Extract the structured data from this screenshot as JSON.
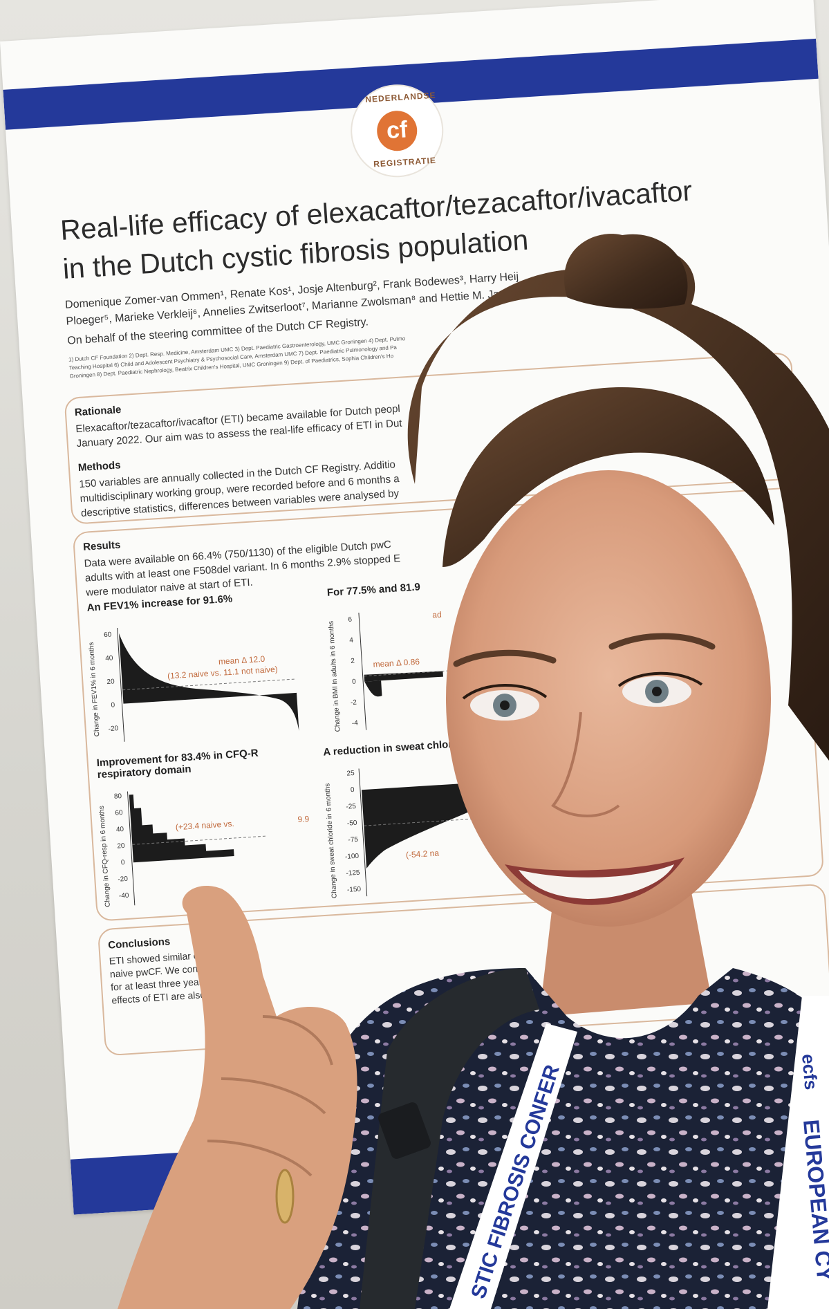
{
  "poster": {
    "logo": {
      "text": "cf",
      "arc_top": "NEDERLANDSE",
      "arc_bottom": "REGISTRATIE"
    },
    "title_line1": "Real-life efficacy of elexacaftor/tezacaftor/ivacaftor",
    "title_line2": "in the Dutch cystic fibrosis population",
    "authors_line1": "Domenique Zomer-van Ommen¹, Renate Kos¹, Josje Altenburg², Frank Bodewes³, Harry Heij",
    "authors_line2": "Ploeger⁵, Marieke Verkleij⁶, Annelies Zwitserloot⁷, Marianne Zwolsman⁸ and Hettie M. Ja",
    "behalf": "On behalf of the steering committee of the Dutch CF Registry.",
    "affil_line1": "1) Dutch CF Foundation 2) Dept. Resp. Medicine, Amsterdam UMC 3) Dept. Paediatric Gastroenterology, UMC Groningen 4) Dept. Pulmo",
    "affil_line2": "Teaching Hospital 6) Child and Adolescent Psychiatry & Psychosocial Care, Amsterdam UMC 7) Dept. Paediatric Pulmonology and Pa",
    "affil_line3": "Groningen 8) Dept. Paediatric Nephrology, Beatrix Children's Hospital, UMC Groningen 9) Dept. of Paediatrics, Sophia Children's Ho",
    "rationale": {
      "heading": "Rationale",
      "line1": "Elexacaftor/tezacaftor/ivacaftor (ETI) became available for Dutch peopl",
      "line2": "January 2022. Our aim was to assess the real-life efficacy of ETI in Dut"
    },
    "methods": {
      "heading": "Methods",
      "line1": "150 variables are annually collected in the Dutch CF Registry. Additio",
      "line2": "multidisciplinary working group, were recorded before and 6 months a",
      "line3": "descriptive statistics, differences between variables were analysed by"
    },
    "results": {
      "heading": "Results",
      "line1": "Data were available on 66.4% (750/1130) of the eligible Dutch pwC",
      "line2": "adults with at least one F508del variant. In 6 months 2.9% stopped E",
      "line3": "were modulator naive at start of ETI."
    },
    "charts": [
      {
        "subtitle": "An FEV1% increase for 91.6%",
        "ylabel": "Change in FEV1% in 6 months",
        "ticks": [
          "60",
          "40",
          "20",
          "0",
          "-20"
        ],
        "ann1": "mean Δ 12.0",
        "ann2": "(13.2 naive vs. 11.1 not naive)"
      },
      {
        "subtitle": "For 77.5% and 81.9",
        "ylabel": "Change in BMI in adults in 6 months",
        "ticks": [
          "6",
          "4",
          "2",
          "0",
          "-2",
          "-4"
        ],
        "ann1": "mean Δ 0.86",
        "ann2": "ad"
      },
      {
        "subtitle": "Improvement for 83.4% in CFQ-R",
        "subtitle2": "respiratory domain",
        "ylabel": "Change in CFQ-resp in 6 months",
        "ticks": [
          "80",
          "60",
          "40",
          "20",
          "0",
          "-20",
          "-40"
        ],
        "ann1": "(+23.4 naive vs.",
        "ann2": "9.9"
      },
      {
        "subtitle": "A reduction in sweat chloric",
        "ylabel": "Change in sweat chloride in 6 months",
        "ticks": [
          "25",
          "0",
          "-25",
          "-50",
          "-75",
          "-100",
          "-125",
          "-150"
        ],
        "ann1": "(-54.2 na",
        "ann2": ""
      }
    ],
    "conclusions": {
      "heading": "Conclusions",
      "line1": "ETI showed similar efficacy i",
      "line2": "naive pwCF. We conclude th",
      "line3": "for at least three years, incl",
      "line4": "effects of ETI are also colle"
    }
  },
  "lanyard": {
    "left_text": "STIC FIBROSIS CONFER",
    "right_text": "EUROPEAN CY",
    "badge": "ecfs"
  },
  "colors": {
    "poster_blue": "#24399a",
    "accent_orange": "#e07435",
    "box_border": "#d9b89d",
    "lanyard": "#ffffff",
    "lanyard_text": "#24399a"
  }
}
